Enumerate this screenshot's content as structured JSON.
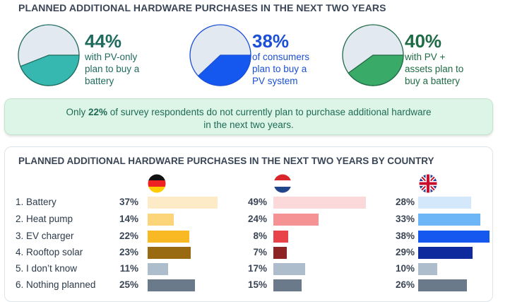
{
  "title": "PLANNED ADDITIONAL HARDWARE PURCHASES IN THE NEXT TWO YEARS",
  "stats": [
    {
      "value": 44,
      "big": "44%",
      "lines": [
        "with PV-only",
        "plan to buy a",
        "battery"
      ],
      "color": "#36b8b0",
      "text_color": "#1f6b5e"
    },
    {
      "value": 38,
      "big": "38%",
      "lines": [
        "of consumers",
        "plan to buy a",
        "PV system"
      ],
      "color": "#1458f0",
      "text_color": "#1a4fd6"
    },
    {
      "value": 40,
      "big": "40%",
      "lines": [
        "with PV +",
        "assets plan to",
        "buy a battery"
      ],
      "color": "#3aaa68",
      "text_color": "#1f6b45"
    }
  ],
  "note": {
    "pre": "Only ",
    "bold": "22%",
    "post": " of survey respondents do not currently plan to purchase additional hardware",
    "line2": "in the next two years."
  },
  "chart_data": {
    "type": "bar",
    "title": "PLANNED ADDITIONAL HARDWARE PURCHASES IN THE NEXT TWO YEARS BY COUNTRY",
    "categories": [
      "1. Battery",
      "2. Heat pump",
      "3. EV charger",
      "4. Rooftop solar",
      "5. I don’t know",
      "6. Nothing planned"
    ],
    "series": [
      {
        "flag": "germany-flag",
        "values": [
          37,
          14,
          22,
          23,
          11,
          25
        ],
        "colors": [
          "#fdebc8",
          "#fcd57a",
          "#f9b925",
          "#9a6a12",
          "#aebdcb",
          "#6b7a8b"
        ]
      },
      {
        "flag": "netherlands-flag",
        "values": [
          49,
          24,
          8,
          7,
          17,
          15
        ],
        "colors": [
          "#fbd9da",
          "#f59293",
          "#e8434a",
          "#8e2326",
          "#aebdcb",
          "#6b7a8b"
        ]
      },
      {
        "flag": "uk-flag",
        "values": [
          28,
          33,
          38,
          29,
          10,
          26
        ],
        "colors": [
          "#d3e8fb",
          "#6cb6f7",
          "#1458f0",
          "#0e2a9c",
          "#aebdcb",
          "#6b7a8b"
        ]
      }
    ]
  }
}
